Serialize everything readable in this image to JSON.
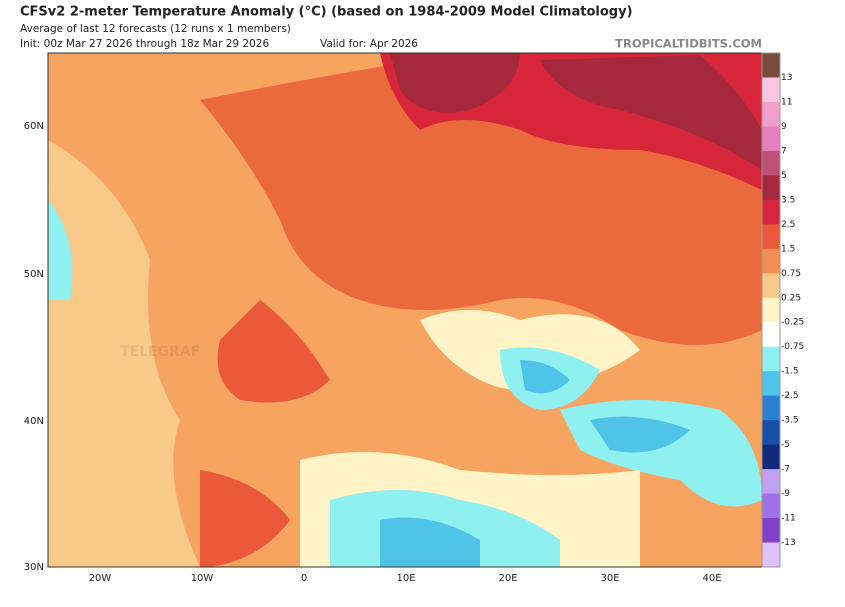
{
  "header": {
    "title": "CFSv2 2-meter Temperature Anomaly (°C) (based on 1984-2009 Model Climatology)",
    "subtitle": "Average of last 12 forecasts (12 runs x 1 members)",
    "init": "Init: 00z Mar 27 2026 through 18z Mar 29 2026",
    "valid": "Valid for: Apr 2026",
    "source": "TROPICALTIDBITS.COM"
  },
  "watermark": "TELEGRAF",
  "latitudes": [
    "60N",
    "50N",
    "40N",
    "30N"
  ],
  "longitudes": [
    "20W",
    "10W",
    "0",
    "10E",
    "20E",
    "30E",
    "40E"
  ],
  "colorbar": {
    "labels": [
      "13",
      "11",
      "9",
      "7",
      "5",
      "3.5",
      "2.5",
      "1.5",
      "0.75",
      "0.25",
      "-0.25",
      "-0.75",
      "-1.5",
      "-2.5",
      "-3.5",
      "-5",
      "-7",
      "-9",
      "-11",
      "-13"
    ],
    "colors": [
      "#7a4a3a",
      "#f7c6e0",
      "#f0a0cf",
      "#e77fbf",
      "#c04f7a",
      "#a5283c",
      "#d7263a",
      "#ea5a3a",
      "#f48e52",
      "#f9c98a",
      "#fff4c8",
      "#ffffff",
      "#8ff0f0",
      "#4fc3e8",
      "#2a7fd0",
      "#1a4fa8",
      "#0e2a78",
      "#c0a0f0",
      "#a070e8",
      "#8040c8",
      "#e0c0f8"
    ]
  }
}
